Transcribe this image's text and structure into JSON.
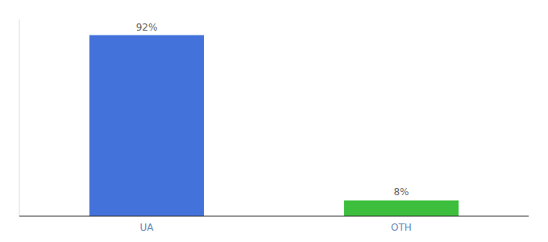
{
  "chart_data": {
    "type": "bar",
    "categories": [
      "UA",
      "OTH"
    ],
    "values": [
      92,
      8
    ],
    "value_labels": [
      "92%",
      "8%"
    ],
    "colors": [
      "#4472db",
      "#3dbf3d"
    ],
    "ylim": [
      0,
      100
    ],
    "data_labels": true,
    "tick_labels": "x",
    "grid": false
  }
}
